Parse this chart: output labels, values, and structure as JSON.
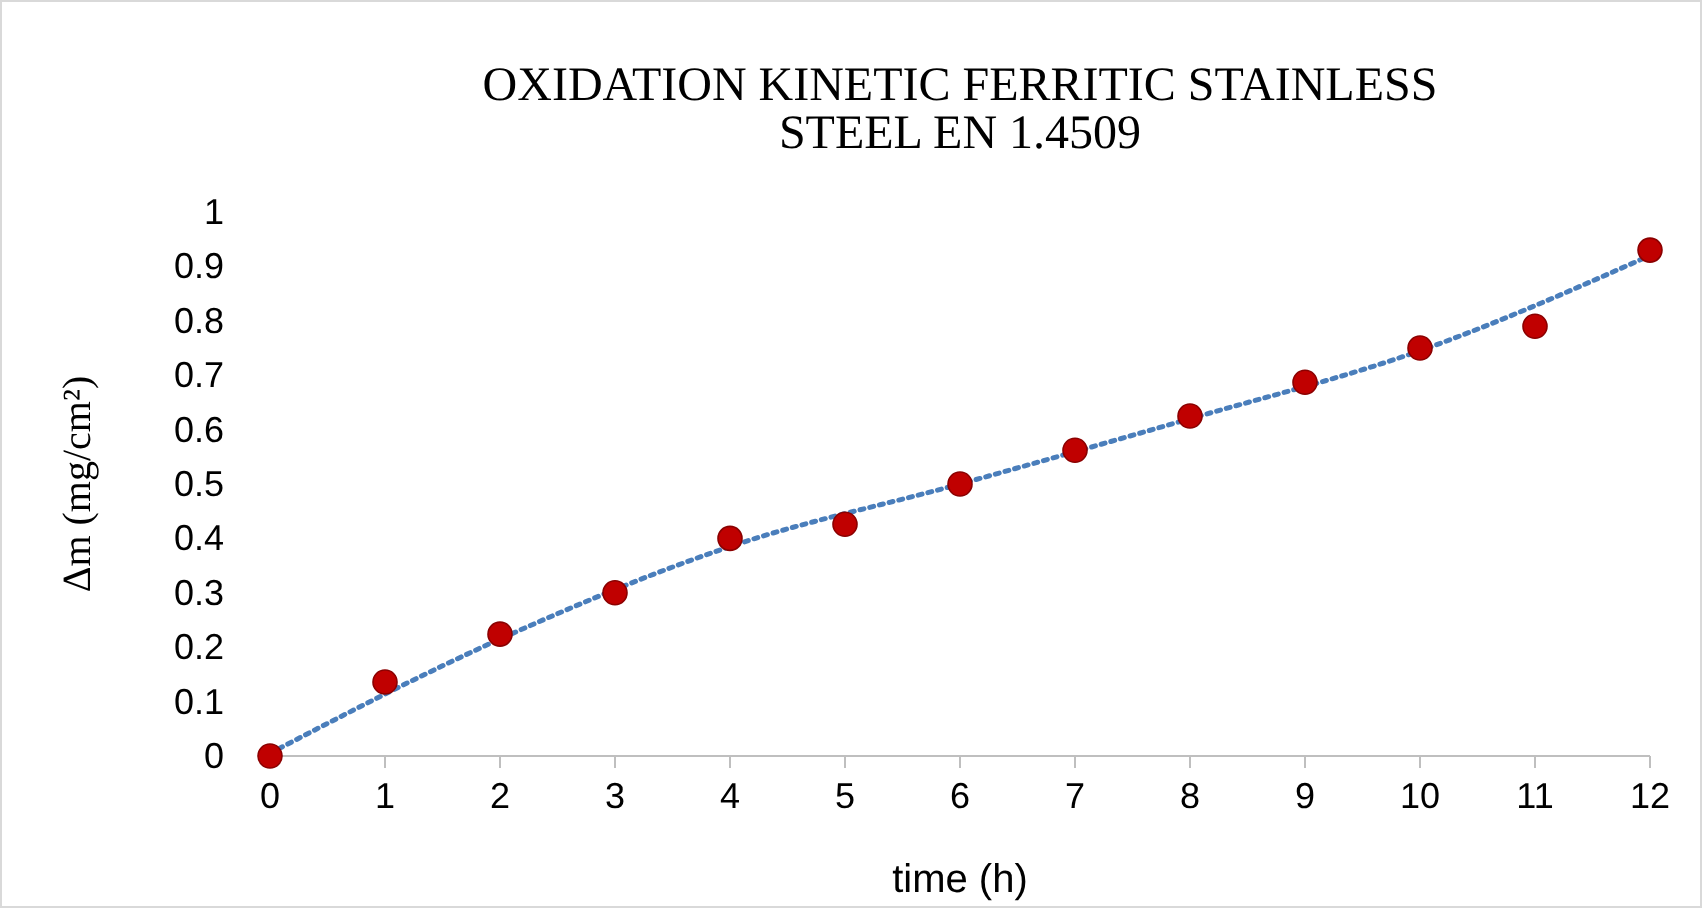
{
  "chart_data": {
    "type": "scatter",
    "title": "OXIDATION KINETIC FERRITIC STAINLESS STEEL EN 1.4509",
    "xlabel": "time (h)",
    "ylabel": "Δm (mg/cm²)",
    "xlim": [
      0,
      12
    ],
    "xticks": [
      0,
      1,
      2,
      3,
      4,
      5,
      6,
      7,
      8,
      9,
      10,
      11,
      12
    ],
    "ylim": [
      0,
      1
    ],
    "yticks": [
      0,
      0.1,
      0.2,
      0.3,
      0.4,
      0.5,
      0.6,
      0.7,
      0.8,
      0.9,
      1
    ],
    "grid": false,
    "series": [
      {
        "type": "line",
        "color": "#4a7ebb",
        "line_style": "dotted",
        "marker": "none",
        "x": [
          0,
          2,
          4,
          6,
          8,
          10,
          12
        ],
        "values": [
          0.005,
          0.215,
          0.385,
          0.5,
          0.62,
          0.745,
          0.92
        ]
      },
      {
        "color": "#c00000",
        "marker": "circle",
        "x": [
          0,
          1,
          2,
          3,
          4,
          5,
          6,
          7,
          8,
          9,
          10,
          11,
          12
        ],
        "values": [
          0,
          0.136,
          0.224,
          0.3,
          0.4,
          0.426,
          0.5,
          0.562,
          0.625,
          0.687,
          0.75,
          0.79,
          0.93
        ]
      }
    ]
  }
}
